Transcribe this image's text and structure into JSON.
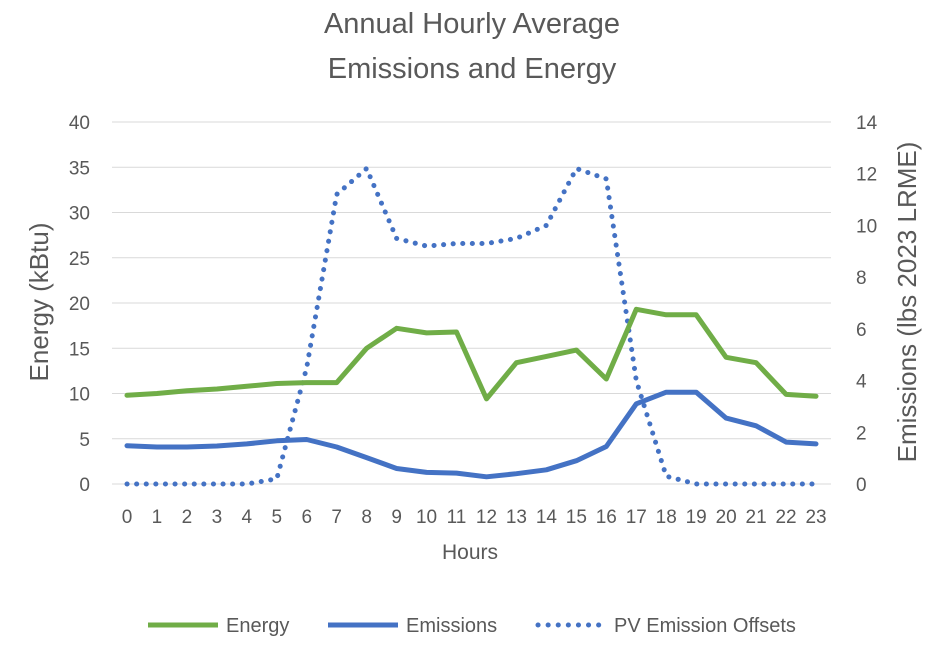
{
  "chart_data": {
    "type": "line",
    "title": [
      "Annual Hourly Average",
      "Emissions and Energy"
    ],
    "xlabel": "Hours",
    "ylabel_left": "Energy (kBtu)",
    "ylabel_right": "Emissions (lbs 2023 LRME)",
    "x": [
      0,
      1,
      2,
      3,
      4,
      5,
      6,
      7,
      8,
      9,
      10,
      11,
      12,
      13,
      14,
      15,
      16,
      17,
      18,
      19,
      20,
      21,
      22,
      23
    ],
    "ylim_left": [
      0,
      40
    ],
    "yticks_left": [
      0,
      5,
      10,
      15,
      20,
      25,
      30,
      35,
      40
    ],
    "ylim_right": [
      0,
      14
    ],
    "yticks_right": [
      0,
      2,
      4,
      6,
      8,
      10,
      12,
      14
    ],
    "grid": true,
    "legend_position": "bottom",
    "series": [
      {
        "name": "Energy",
        "axis": "left",
        "style": "solid",
        "color": "#70ad47",
        "values": [
          9.8,
          10.0,
          10.3,
          10.5,
          10.8,
          11.1,
          11.2,
          11.2,
          15.0,
          17.2,
          16.7,
          16.8,
          9.4,
          13.4,
          14.1,
          14.8,
          11.6,
          19.3,
          18.7,
          18.7,
          14.0,
          13.4,
          9.9,
          9.7
        ]
      },
      {
        "name": "Emissions",
        "axis": "right",
        "style": "solid",
        "color": "#4472c4",
        "values": [
          1.48,
          1.43,
          1.43,
          1.47,
          1.55,
          1.67,
          1.72,
          1.43,
          1.02,
          0.6,
          0.45,
          0.42,
          0.28,
          0.4,
          0.55,
          0.9,
          1.45,
          3.1,
          3.55,
          3.55,
          2.55,
          2.25,
          1.62,
          1.55
        ]
      },
      {
        "name": "PV Emission Offsets",
        "axis": "right",
        "style": "dotted",
        "color": "#4472c4",
        "values": [
          0,
          0,
          0,
          0,
          0,
          0.2,
          4.5,
          11.2,
          12.2,
          9.5,
          9.2,
          9.3,
          9.3,
          9.5,
          10.0,
          12.2,
          11.8,
          4.0,
          0.3,
          0,
          0,
          0,
          0,
          0
        ]
      }
    ]
  }
}
